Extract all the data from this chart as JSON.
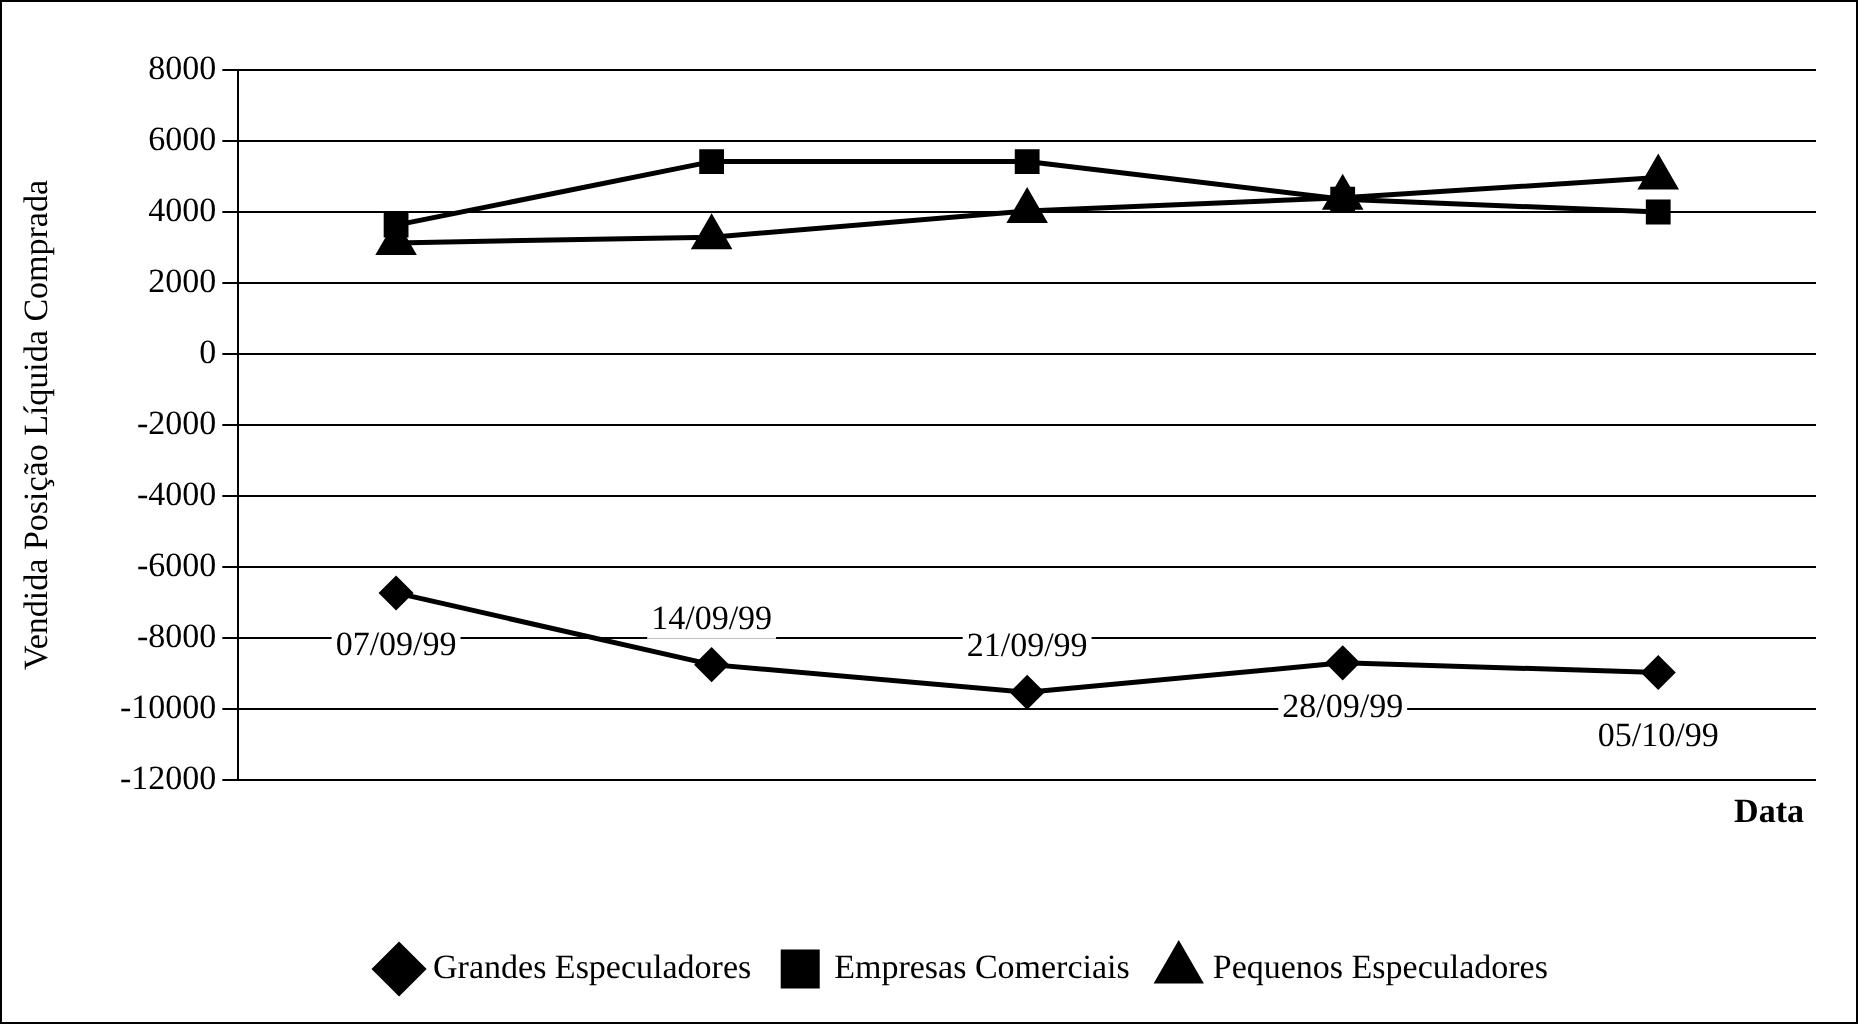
{
  "chart_data": {
    "type": "line",
    "ylabel": "Vendida Posição Líquida Comprada",
    "xlabel": "Data",
    "categories": [
      "07/09/99",
      "14/09/99",
      "21/09/99",
      "28/09/99",
      "05/10/99"
    ],
    "series": [
      {
        "name": "Grandes Especuladores",
        "color": "#000000",
        "marker": "diamond",
        "values": [
          -6730,
          -8750,
          -9530,
          -8700,
          -8970
        ]
      },
      {
        "name": "Empresas Comerciais",
        "color": "#000000",
        "marker": "square",
        "values": [
          3630,
          5420,
          5420,
          4360,
          4000
        ]
      },
      {
        "name": "Pequenos Especuladores",
        "color": "#000000",
        "marker": "triangle",
        "values": [
          3130,
          3290,
          4030,
          4400,
          4970
        ]
      }
    ],
    "ylim": [
      -12000,
      8000
    ],
    "yticks": [
      -12000,
      -10000,
      -8000,
      -6000,
      -4000,
      -2000,
      0,
      2000,
      4000,
      6000,
      8000
    ],
    "grid": "y",
    "legend": "bottom",
    "line_style": "solid"
  }
}
